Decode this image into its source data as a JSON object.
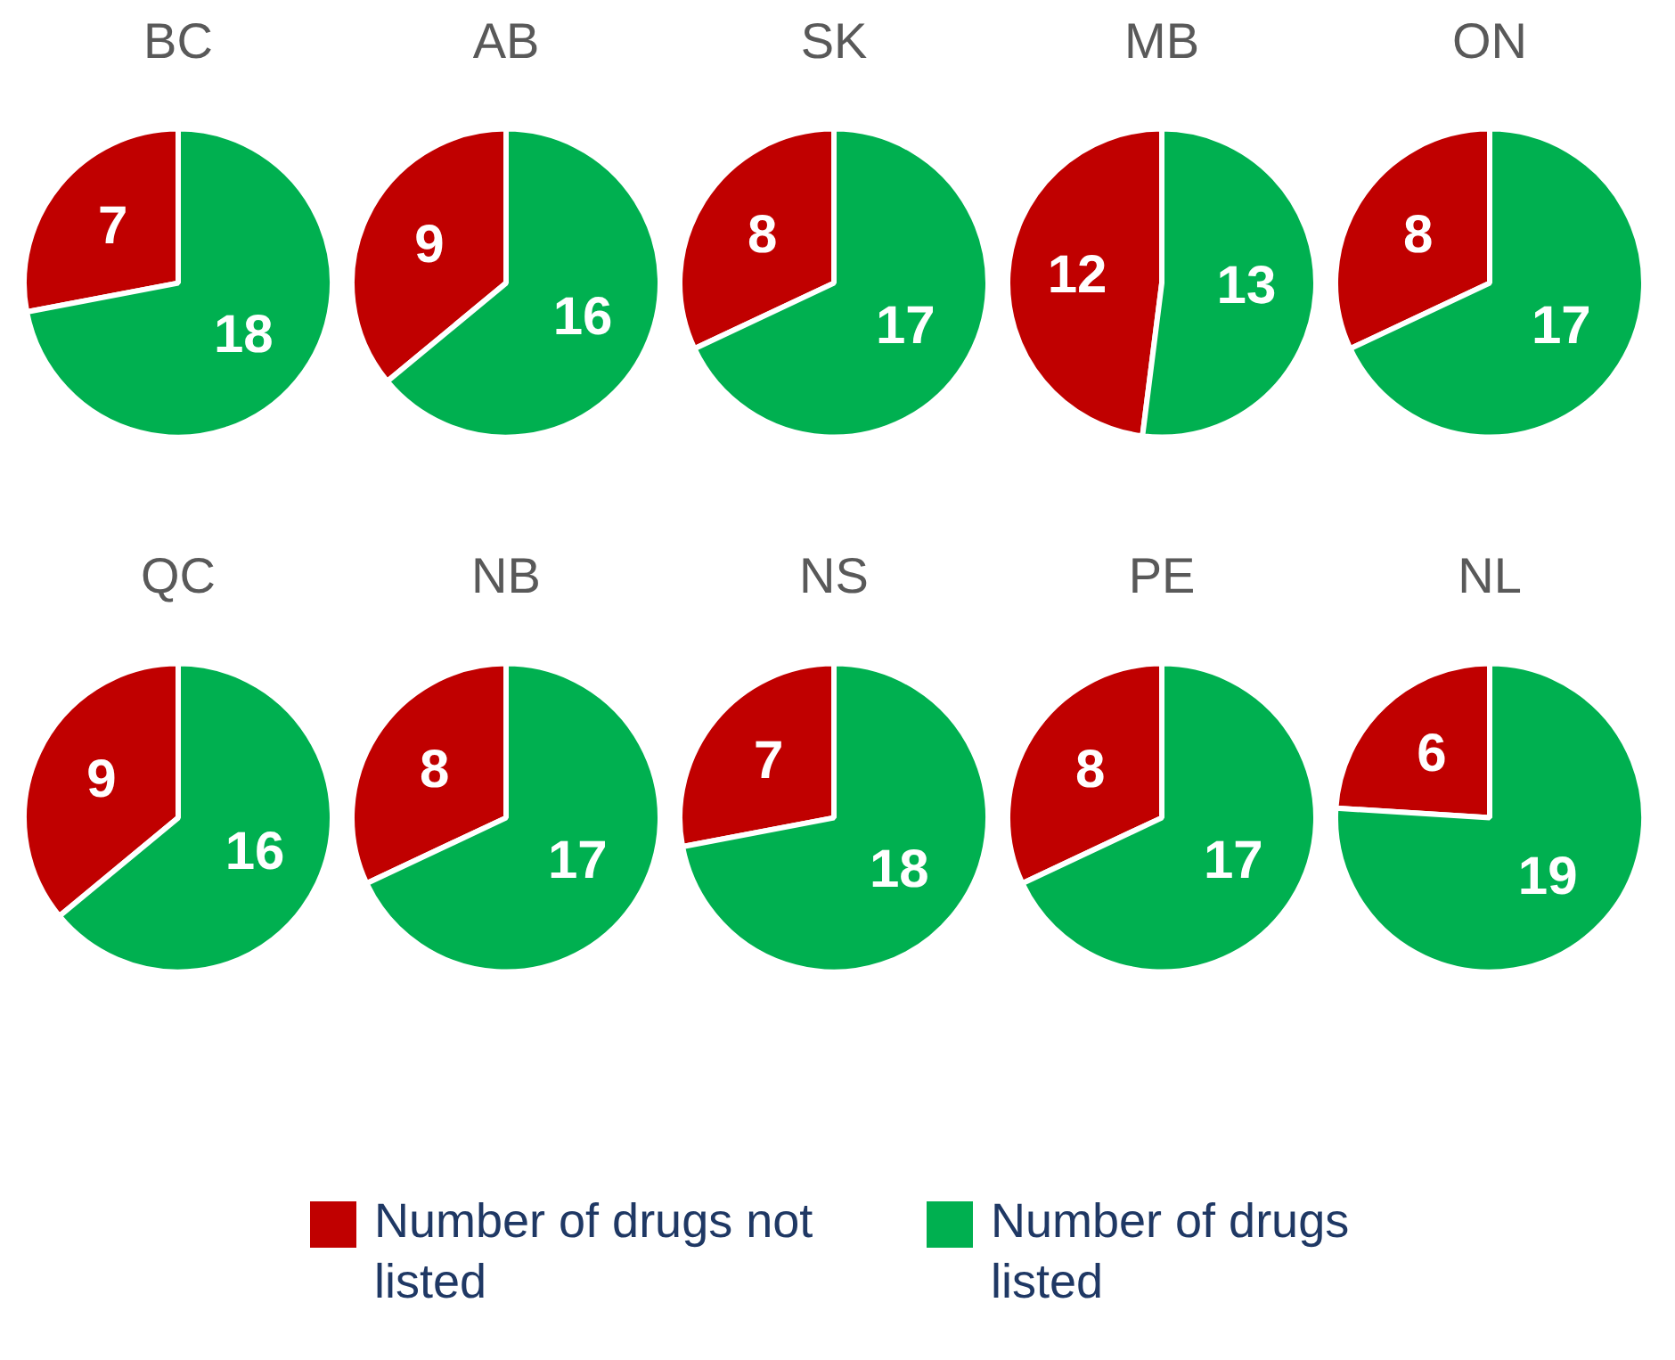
{
  "chart_data": [
    {
      "type": "pie",
      "title": "BC",
      "categories": [
        "Number of drugs not listed",
        "Number of drugs listed"
      ],
      "values": [
        7,
        18
      ],
      "colors": [
        "#c00000",
        "#00b050"
      ],
      "data_labels": true,
      "legend": "bottom"
    },
    {
      "type": "pie",
      "title": "AB",
      "categories": [
        null,
        null
      ],
      "values": [
        9,
        16
      ],
      "colors": [
        "#c00000",
        "#00b050"
      ],
      "data_labels": true
    },
    {
      "type": "pie",
      "title": "SK",
      "categories": [
        null,
        null
      ],
      "values": [
        8,
        17
      ],
      "colors": [
        "#c00000",
        "#00b050"
      ],
      "data_labels": true
    },
    {
      "type": "pie",
      "title": "MB",
      "categories": [
        null,
        null
      ],
      "values": [
        12,
        13
      ],
      "colors": [
        "#c00000",
        "#00b050"
      ],
      "data_labels": true
    },
    {
      "type": "pie",
      "title": "ON",
      "categories": [
        null,
        null
      ],
      "values": [
        8,
        17
      ],
      "colors": [
        "#c00000",
        "#00b050"
      ],
      "data_labels": true
    },
    {
      "type": "pie",
      "title": "QC",
      "categories": [
        null,
        null
      ],
      "values": [
        9,
        16
      ],
      "colors": [
        "#c00000",
        "#00b050"
      ],
      "data_labels": true
    },
    {
      "type": "pie",
      "title": "NB",
      "categories": [
        null,
        null
      ],
      "values": [
        8,
        17
      ],
      "colors": [
        "#c00000",
        "#00b050"
      ],
      "data_labels": true
    },
    {
      "type": "pie",
      "title": "NS",
      "categories": [
        null,
        null
      ],
      "values": [
        7,
        18
      ],
      "colors": [
        "#c00000",
        "#00b050"
      ],
      "data_labels": true
    },
    {
      "type": "pie",
      "title": "PE",
      "categories": [
        null,
        null
      ],
      "values": [
        8,
        17
      ],
      "colors": [
        "#c00000",
        "#00b050"
      ],
      "data_labels": true
    },
    {
      "type": "pie",
      "title": "NL",
      "categories": [
        null,
        null
      ],
      "values": [
        6,
        19
      ],
      "colors": [
        "#c00000",
        "#00b050"
      ],
      "data_labels": true
    }
  ]
}
